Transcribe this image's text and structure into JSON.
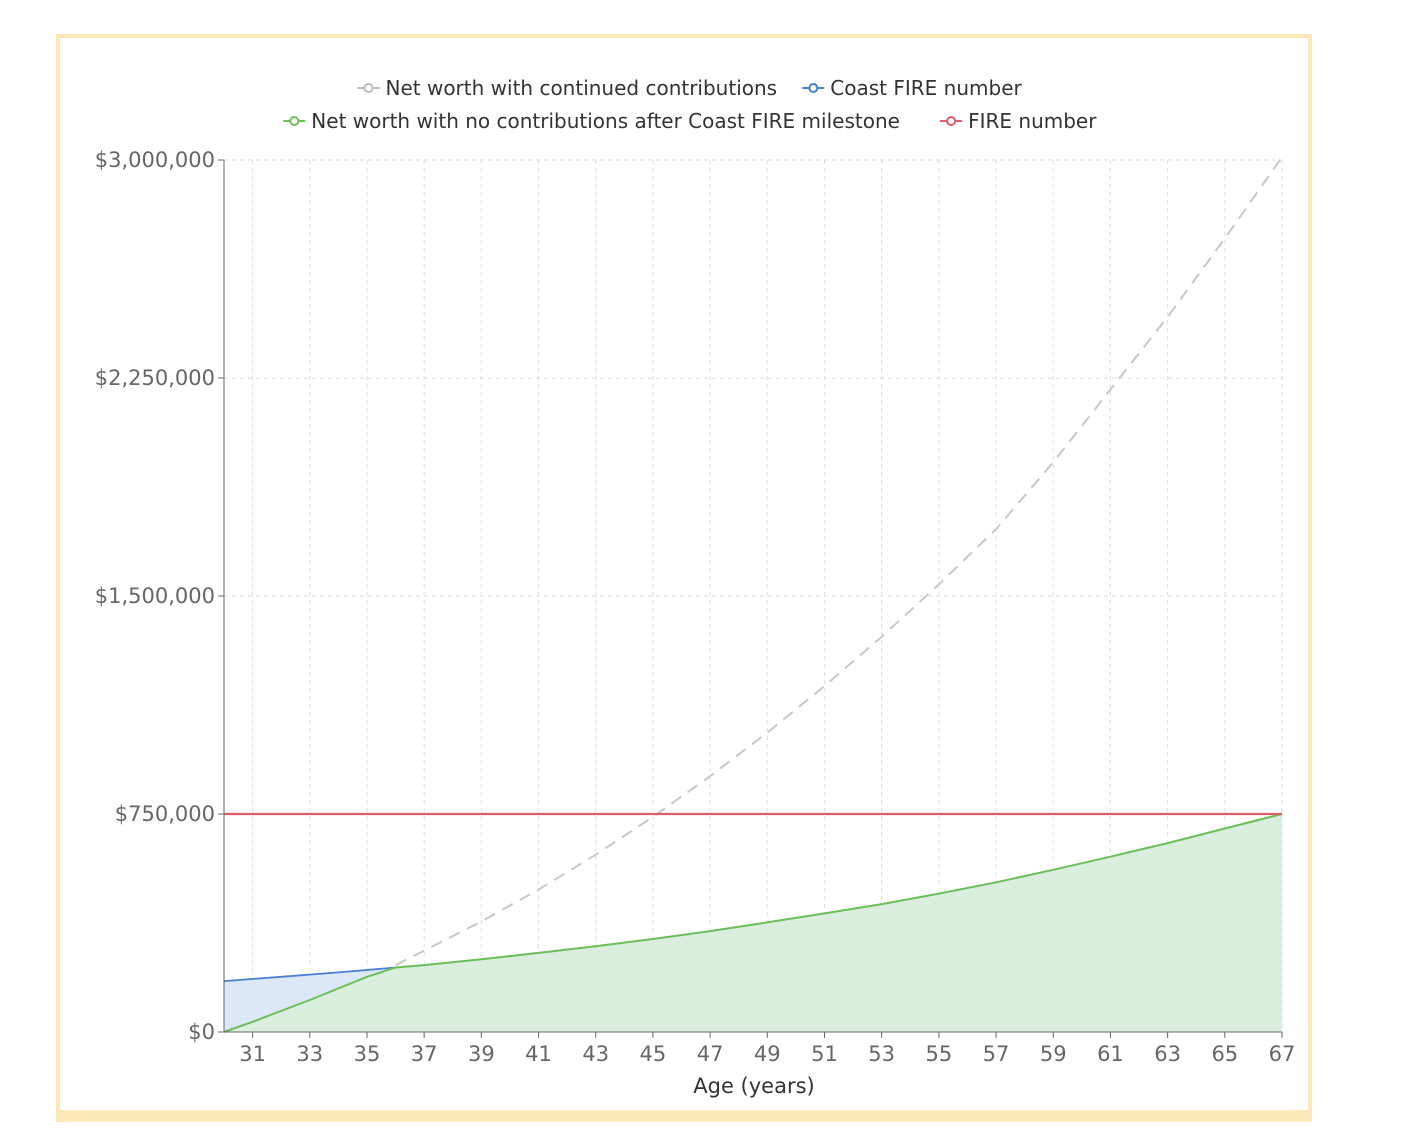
{
  "chart_data": {
    "type": "line",
    "xlabel": "Age (years)",
    "ylabel": "",
    "xlim": [
      30,
      67
    ],
    "ylim": [
      0,
      3000000
    ],
    "x_ticks": [
      31,
      33,
      35,
      37,
      39,
      41,
      43,
      45,
      47,
      49,
      51,
      53,
      55,
      57,
      59,
      61,
      63,
      65,
      67
    ],
    "y_ticks": [
      0,
      750000,
      1500000,
      2250000,
      3000000
    ],
    "y_tick_labels": [
      "$0",
      "$750,000",
      "$1,500,000",
      "$2,250,000",
      "$3,000,000"
    ],
    "grid": true,
    "legend_position": "top",
    "legend": [
      {
        "key": "continued",
        "label": "Net worth with continued contributions",
        "color": "#bbbbbb"
      },
      {
        "key": "coast",
        "label": "Coast FIRE number",
        "color": "#4a7fd6"
      },
      {
        "key": "no_contrib",
        "label": "Net worth with no contributions after Coast FIRE milestone",
        "color": "#6abf59"
      },
      {
        "key": "fire",
        "label": "FIRE number",
        "color": "#e05c6a"
      }
    ],
    "series": [
      {
        "name": "Net worth with continued contributions",
        "key": "continued",
        "color": "#bbbbbb",
        "dashed": true,
        "x": [
          36,
          37,
          39,
          41,
          43,
          45,
          47,
          49,
          51,
          53,
          55,
          57,
          59,
          61,
          63,
          65,
          67
        ],
        "y": [
          230000,
          280000,
          380000,
          490000,
          610000,
          740000,
          880000,
          1030000,
          1190000,
          1360000,
          1540000,
          1730000,
          1960000,
          2210000,
          2460000,
          2730000,
          3010000
        ]
      },
      {
        "name": "Coast FIRE number",
        "key": "coast",
        "color": "#4a7fd6",
        "x": [
          30,
          32,
          34,
          36
        ],
        "y": [
          175000,
          190000,
          205000,
          222000
        ]
      },
      {
        "name": "Net worth with no contributions after Coast FIRE milestone",
        "key": "no_contrib",
        "color": "#6abf59",
        "x": [
          30,
          31,
          33,
          35,
          36,
          37,
          39,
          41,
          43,
          45,
          47,
          49,
          51,
          53,
          55,
          57,
          59,
          61,
          63,
          65,
          67
        ],
        "y": [
          0,
          35000,
          110000,
          190000,
          222000,
          230000,
          250000,
          272000,
          295000,
          320000,
          347000,
          377000,
          408000,
          440000,
          476000,
          515000,
          558000,
          603000,
          650000,
          700000,
          750000
        ]
      },
      {
        "name": "FIRE number",
        "key": "fire",
        "color": "#e05c6a",
        "x": [
          30,
          67
        ],
        "y": [
          750000,
          750000
        ]
      }
    ]
  }
}
